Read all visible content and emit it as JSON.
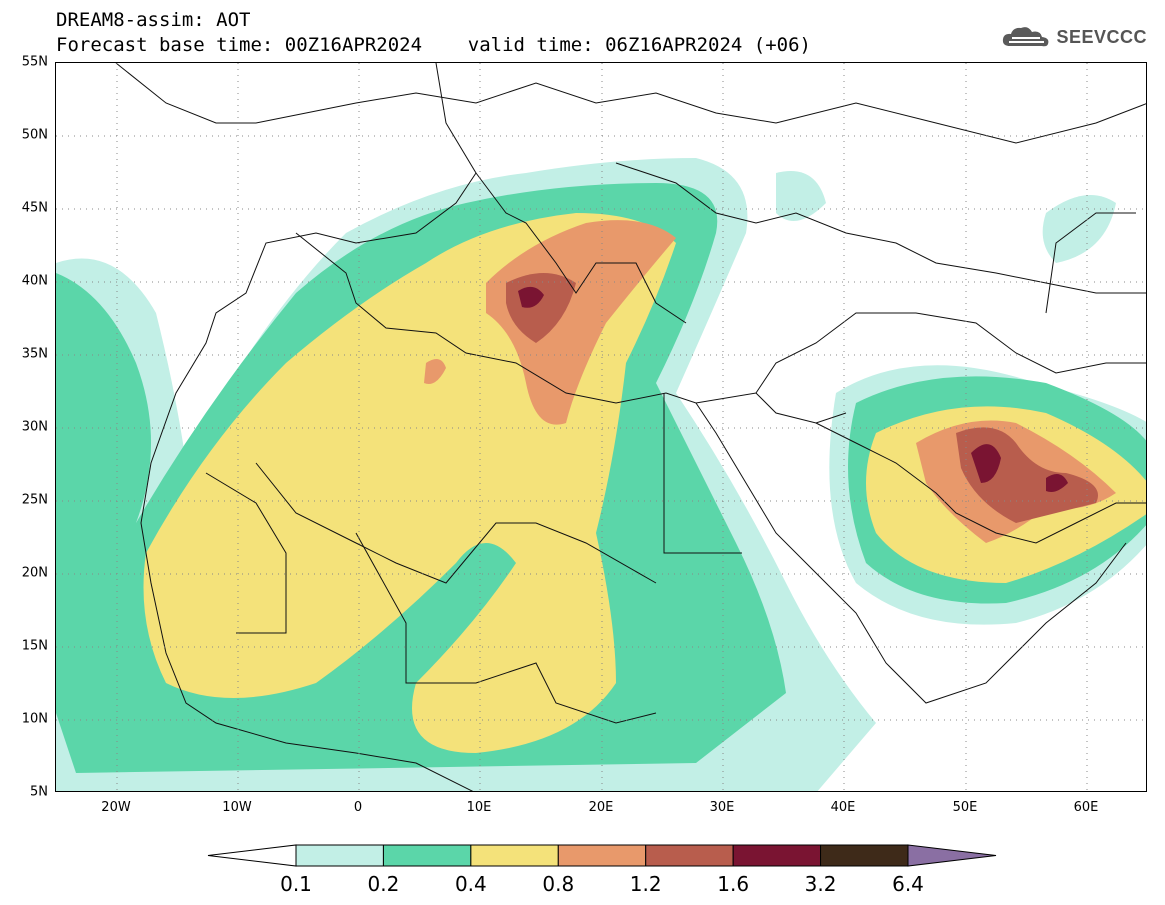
{
  "header": {
    "line1": "DREAM8-assim: AOT",
    "line2": "Forecast base time: 00Z16APR2024    valid time: 06Z16APR2024 (+06)"
  },
  "logo": {
    "text": "SEEVCCC",
    "icon": "cloud-icon"
  },
  "map": {
    "lon_range": [
      -25,
      65
    ],
    "lat_range": [
      5,
      55
    ],
    "lat_labels": [
      "55N",
      "50N",
      "45N",
      "40N",
      "35N",
      "30N",
      "25N",
      "20N",
      "15N",
      "10N",
      "5N"
    ],
    "lon_labels": [
      "20W",
      "10W",
      "0",
      "10E",
      "20E",
      "30E",
      "40E",
      "50E",
      "60E"
    ],
    "grid": "dotted"
  },
  "legend": {
    "thresholds": [
      "0.1",
      "0.2",
      "0.4",
      "0.8",
      "1.2",
      "1.6",
      "3.2",
      "6.4"
    ],
    "colors": [
      "#ffffff",
      "#c2efe6",
      "#5bd6a9",
      "#f4e27a",
      "#e8996b",
      "#b85d4d",
      "#7a1432",
      "#3e2a19",
      "#8a6fa3"
    ]
  }
}
